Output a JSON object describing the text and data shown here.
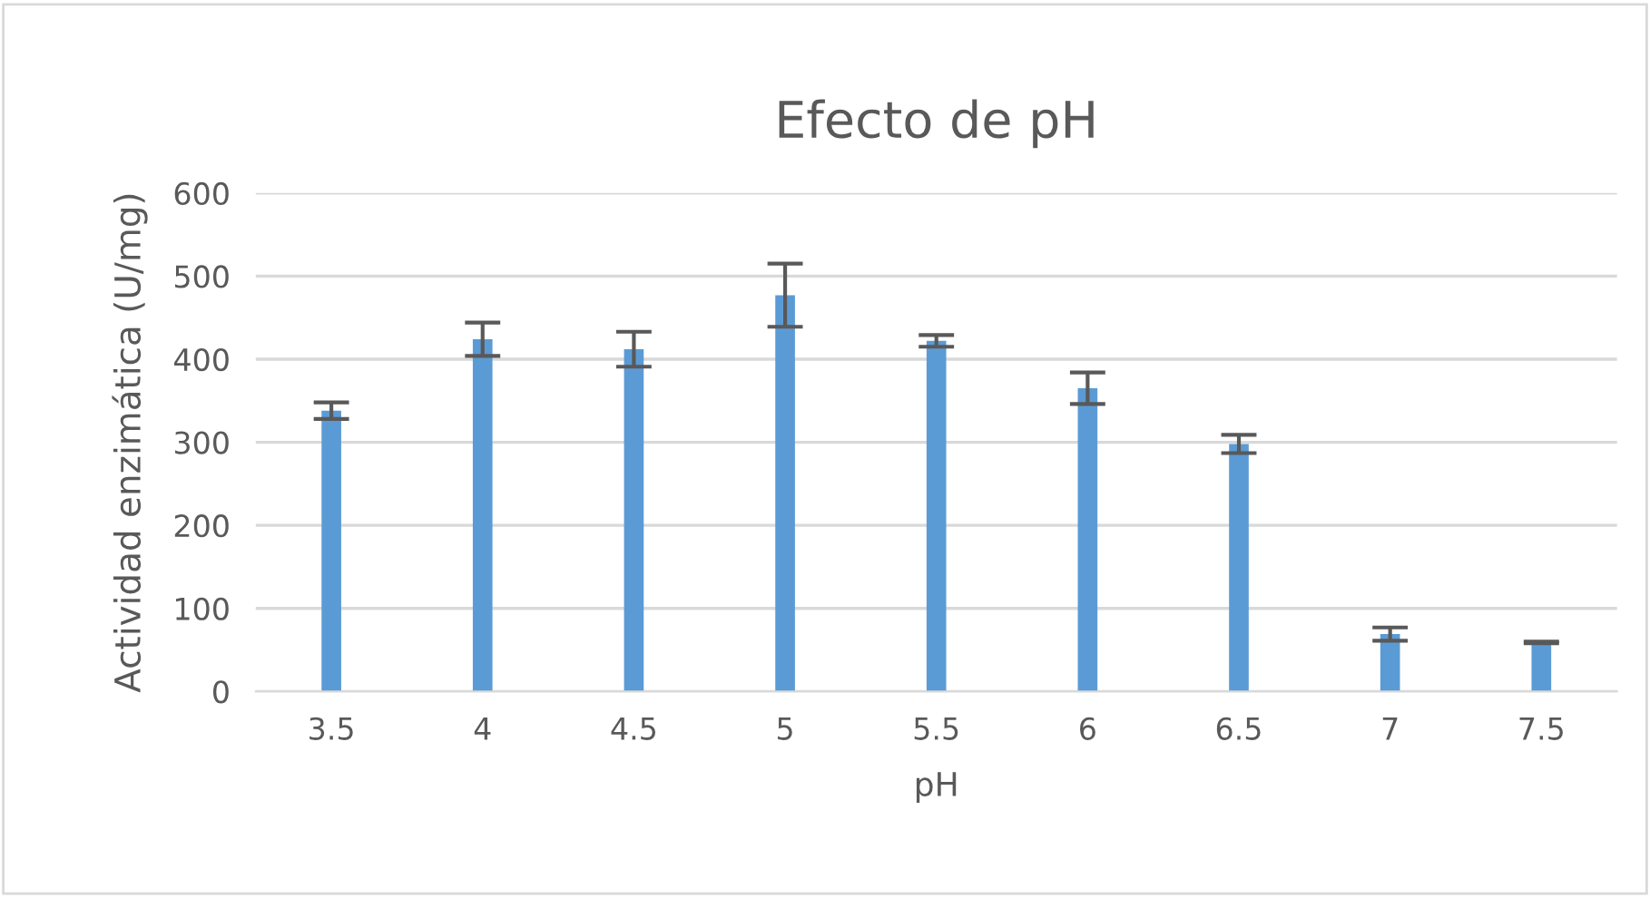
{
  "chart_data": {
    "type": "bar",
    "title": "Efecto de pH",
    "xlabel": "pH",
    "ylabel": "Actividad enzimática (U/mg)",
    "categories": [
      "3.5",
      "4",
      "4.5",
      "5",
      "5.5",
      "6",
      "6.5",
      "7",
      "7.5"
    ],
    "values": [
      338,
      424,
      412,
      477,
      422,
      365,
      298,
      69,
      59
    ],
    "errors": [
      10,
      20,
      21,
      38,
      7,
      19,
      11,
      8,
      1
    ],
    "color": "#5b9bd5",
    "ylim": [
      0,
      600
    ],
    "yticks": [
      0,
      100,
      200,
      300,
      400,
      500,
      600
    ],
    "grid": "y"
  }
}
